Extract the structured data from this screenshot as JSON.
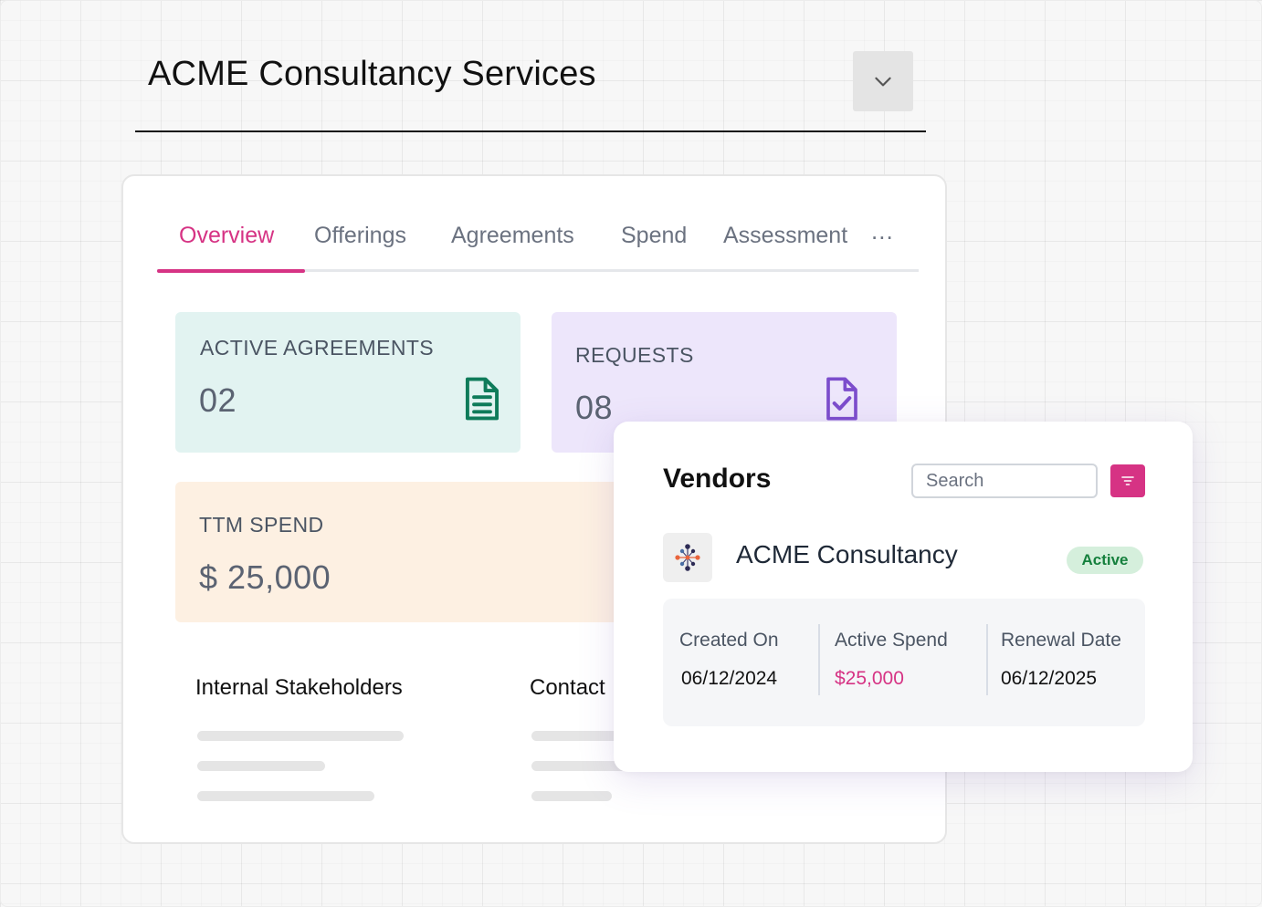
{
  "header": {
    "title": "ACME Consultancy Services"
  },
  "tabs": [
    {
      "label": "Overview",
      "active": true
    },
    {
      "label": "Offerings",
      "active": false
    },
    {
      "label": "Agreements",
      "active": false
    },
    {
      "label": "Spend",
      "active": false
    },
    {
      "label": "Assessment",
      "active": false
    }
  ],
  "tabs_more": "...",
  "stats": {
    "agreements": {
      "label": "ACTIVE AGREEMENTS",
      "value": "02",
      "icon": "document-icon",
      "color": "#0f7b5a"
    },
    "requests": {
      "label": "REQUESTS",
      "value": "08",
      "icon": "document-check-icon",
      "color": "#7c4dcc"
    },
    "spend": {
      "label": "TTM SPEND",
      "value": "$ 25,000"
    }
  },
  "sections": {
    "stakeholders": "Internal Stakeholders",
    "contacts": "Contact"
  },
  "vendors": {
    "title": "Vendors",
    "search_placeholder": "Search",
    "vendor": {
      "name": "ACME Consultancy",
      "status": "Active"
    },
    "details": {
      "created_label": "Created On",
      "created_value": "06/12/2024",
      "spend_label": "Active Spend",
      "spend_value": "$25,000",
      "renewal_label": "Renewal Date",
      "renewal_value": "06/12/2025"
    }
  },
  "colors": {
    "accent": "#d63384",
    "active_badge": "#15803d"
  }
}
